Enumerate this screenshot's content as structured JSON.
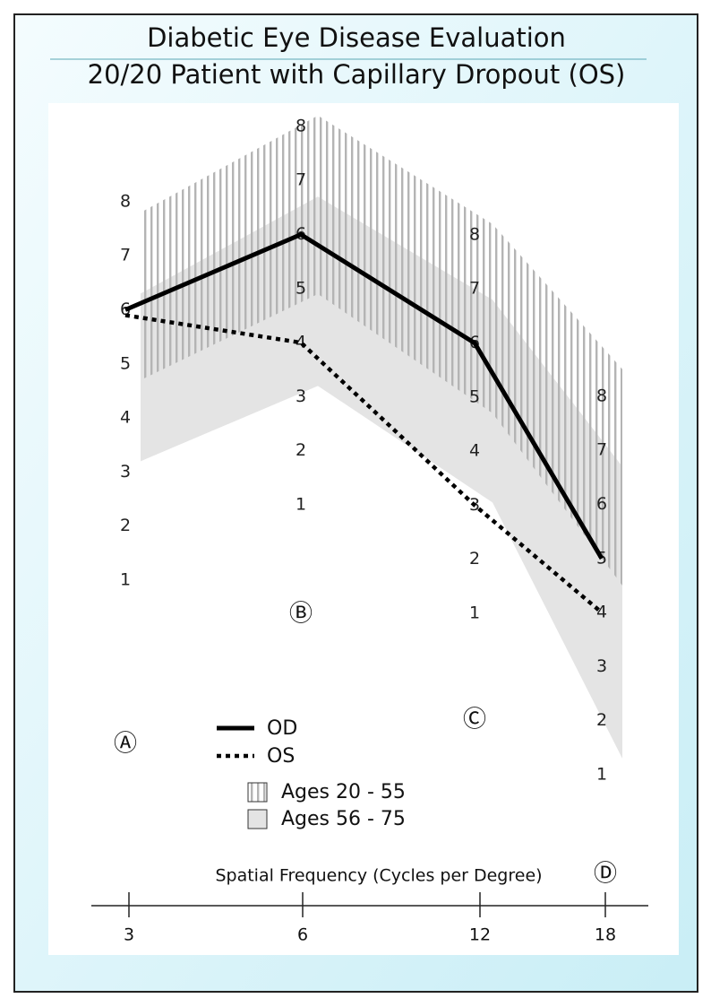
{
  "chart_data": {
    "type": "line",
    "title": "Diabetic Eye Disease Evaluation",
    "subtitle": "20/20 Patient with Capillary Dropout (OS)",
    "xlabel": "Spatial Frequency (Cycles per Degree)",
    "categories": [
      3,
      6,
      12,
      18
    ],
    "column_labels": [
      "Ⓐ",
      "Ⓑ",
      "Ⓒ",
      "Ⓓ"
    ],
    "column_yticks": [
      [
        1,
        2,
        3,
        4,
        5,
        6,
        7,
        8
      ],
      [
        1,
        2,
        3,
        4,
        5,
        6,
        7,
        8
      ],
      [
        1,
        2,
        3,
        4,
        5,
        6,
        7,
        8
      ],
      [
        1,
        2,
        3,
        4,
        5,
        6,
        7,
        8
      ]
    ],
    "series": [
      {
        "name": "OD",
        "color": "#000000",
        "style": "solid",
        "values": [
          6,
          6,
          6,
          5
        ]
      },
      {
        "name": "OS",
        "color": "#000000",
        "style": "dotted",
        "values": [
          5.9,
          4,
          3,
          4
        ]
      }
    ],
    "bands": [
      {
        "name": "Ages 56 - 75",
        "color": "#e4e4e4",
        "pattern": "solid",
        "lower": [
          3.2,
          3.2,
          3.05,
          1.3
        ],
        "upper": [
          6.3,
          6.7,
          6.8,
          6.7
        ]
      },
      {
        "name": "Ages 20 - 55",
        "color": "#b4b4b4",
        "pattern": "stripes",
        "lower": [
          4.7,
          4.9,
          4.7,
          4.5
        ],
        "upper": [
          7.8,
          8.2,
          8.2,
          8.5
        ]
      }
    ]
  }
}
